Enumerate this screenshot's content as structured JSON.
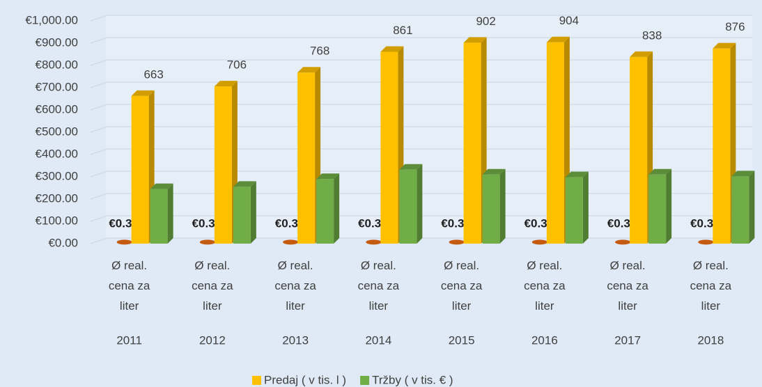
{
  "chart_data": {
    "type": "bar3d",
    "categories": [
      "2011",
      "2012",
      "2013",
      "2014",
      "2015",
      "2016",
      "2017",
      "2018"
    ],
    "sublabels": [
      "Ø real. cena za liter",
      "Ø real. cena za liter",
      "Ø real. cena za liter",
      "Ø real. cena za liter",
      "Ø real. cena za liter",
      "Ø real. cena za liter",
      "Ø real. cena za liter",
      "Ø real. cena za liter"
    ],
    "series": [
      {
        "color": "#c55a11",
        "values": [
          0.36,
          0.35,
          0.37,
          0.39,
          0.34,
          0.33,
          0.37,
          0.35
        ],
        "value_labels": [
          "€0.36",
          "€0.35",
          "€0.37",
          "€0.39",
          "€0.34",
          "€0.33",
          "€0.37",
          "€0.35"
        ]
      },
      {
        "name": "Predaj ( v tis. l )",
        "color": "#ffc000",
        "values": [
          663,
          706,
          768,
          861,
          902,
          904,
          838,
          876
        ],
        "value_labels": [
          "663",
          "706",
          "768",
          "861",
          "902",
          "904",
          "838",
          "876"
        ]
      },
      {
        "name": "Tržby ( v tis. € )",
        "color": "#70ad47",
        "values": [
          245,
          255,
          290,
          332,
          310,
          298,
          310,
          302
        ]
      }
    ],
    "ylim": [
      0,
      1000
    ],
    "yticks": [
      {
        "value": 0,
        "label": "€0.00"
      },
      {
        "value": 100,
        "label": "€100.00"
      },
      {
        "value": 200,
        "label": "€200.00"
      },
      {
        "value": 300,
        "label": "€300.00"
      },
      {
        "value": 400,
        "label": "€400.00"
      },
      {
        "value": 500,
        "label": "€500.00"
      },
      {
        "value": 600,
        "label": "€600.00"
      },
      {
        "value": 700,
        "label": "€700.00"
      },
      {
        "value": 800,
        "label": "€800.00"
      },
      {
        "value": 900,
        "label": "€900.00"
      },
      {
        "value": 1000,
        "label": "€1,000.00"
      }
    ],
    "grid": true
  }
}
